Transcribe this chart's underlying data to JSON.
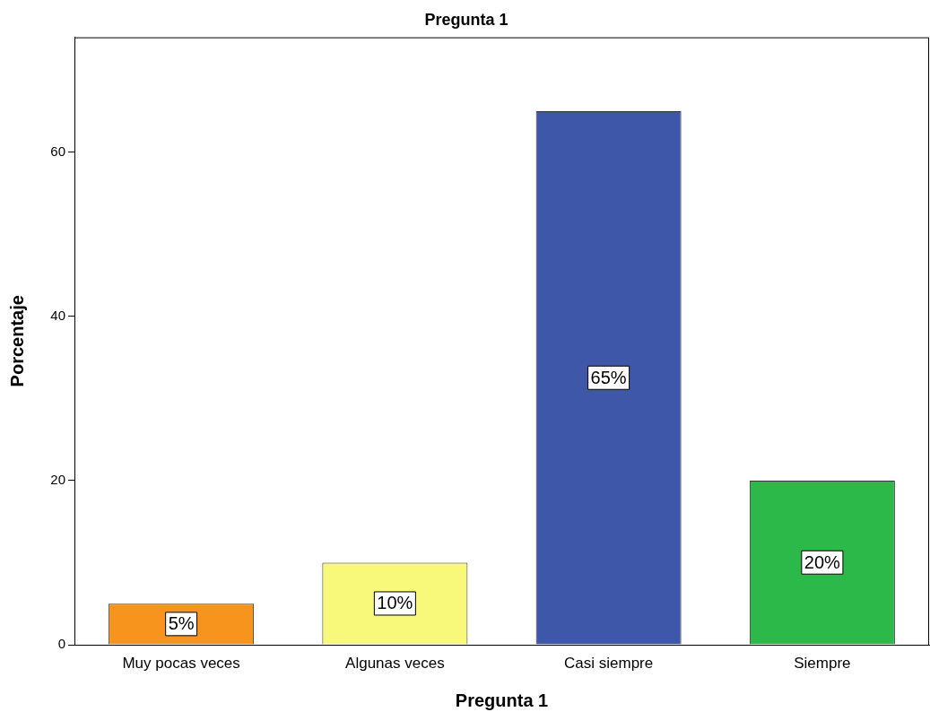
{
  "chart_data": {
    "type": "bar",
    "title": "Pregunta 1",
    "xlabel": "Pregunta 1",
    "ylabel": "Porcentaje",
    "categories": [
      "Muy pocas veces",
      "Algunas veces",
      "Casi siempre",
      "Siempre"
    ],
    "values": [
      5,
      10,
      65,
      20
    ],
    "colors": [
      "#f7941d",
      "#f8f87a",
      "#3f57a8",
      "#2db84a"
    ],
    "value_labels": [
      "5%",
      "10%",
      "65%",
      "20%"
    ],
    "ylim": [
      0,
      74
    ],
    "yticks": [
      0,
      20,
      40,
      60
    ],
    "grid": false,
    "legend": false
  }
}
